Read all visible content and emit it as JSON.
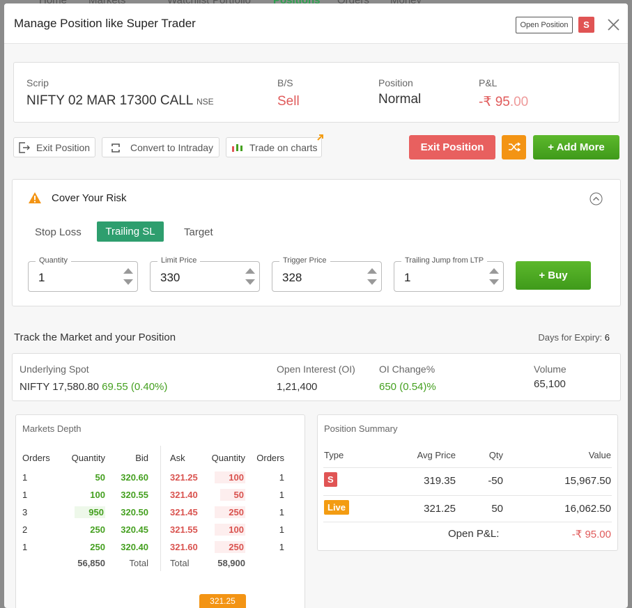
{
  "nav": [
    "Home",
    "Markets",
    "Watchlist",
    "Portfolio",
    "Positions",
    "Orders",
    "Money"
  ],
  "modal": {
    "title": "Manage Position like Super Trader",
    "open_position": "Open Position",
    "badge": "S"
  },
  "position": {
    "scrip_label": "Scrip",
    "scrip": "NIFTY 02 MAR 17300 CALL",
    "exchange": "NSE",
    "bs_label": "B/S",
    "bs": "Sell",
    "position_label": "Position",
    "position": "Normal",
    "pnl_label": "P&L",
    "pnl": "-₹ 95",
    "pnl_decimals": ".00"
  },
  "actions": [
    "Exit Position",
    "Convert to Intraday",
    "Trade on charts"
  ],
  "buttons": {
    "exit": "Exit Position",
    "add_more": "+ Add More"
  },
  "risk": {
    "title": "Cover Your Risk",
    "tabs": [
      "Stop Loss",
      "Trailing SL",
      "Target"
    ],
    "fields": [
      {
        "label": "Quantity",
        "value": "1"
      },
      {
        "label": "Limit Price",
        "value": "330"
      },
      {
        "label": "Trigger Price",
        "value": "328"
      },
      {
        "label": "Trailing Jump from LTP",
        "value": "1"
      }
    ],
    "buy": "+ Buy"
  },
  "track": {
    "title": "Track the Market and your Position",
    "expiry_label": "Days for Expiry:",
    "expiry": "6",
    "stats": [
      {
        "label": "Underlying Spot",
        "value": "NIFTY 17,580.80",
        "change": "69.55 (0.40%)"
      },
      {
        "label": "Open Interest (OI)",
        "value": "1,21,400"
      },
      {
        "label": "OI Change%",
        "value": "650 (0.54)%"
      },
      {
        "label": "Volume",
        "value": "65,100"
      }
    ]
  },
  "depth": {
    "title": "Markets Depth",
    "headers": [
      "Orders",
      "Quantity",
      "Bid",
      "Ask",
      "Quantity",
      "Orders"
    ],
    "rows": [
      [
        "1",
        "50",
        "320.60",
        "321.25",
        "100",
        "1"
      ],
      [
        "1",
        "100",
        "320.55",
        "321.40",
        "50",
        "1"
      ],
      [
        "3",
        "950",
        "320.50",
        "321.45",
        "250",
        "1"
      ],
      [
        "2",
        "250",
        "320.45",
        "321.55",
        "100",
        "1"
      ],
      [
        "1",
        "250",
        "320.40",
        "321.60",
        "250",
        "1"
      ]
    ],
    "totals": [
      "56,850",
      "Total",
      "Total",
      "58,900"
    ],
    "ltp": "321.25"
  },
  "summary": {
    "title": "Position Summary",
    "headers": [
      "Type",
      "Avg Price",
      "Qty",
      "Value"
    ],
    "rows": [
      [
        "S",
        "319.35",
        "-50",
        "15,967.50"
      ],
      [
        "Live",
        "321.25",
        "50",
        "16,062.50"
      ]
    ],
    "pnl_label": "Open P&L:",
    "pnl": "-₹ 95.00"
  }
}
